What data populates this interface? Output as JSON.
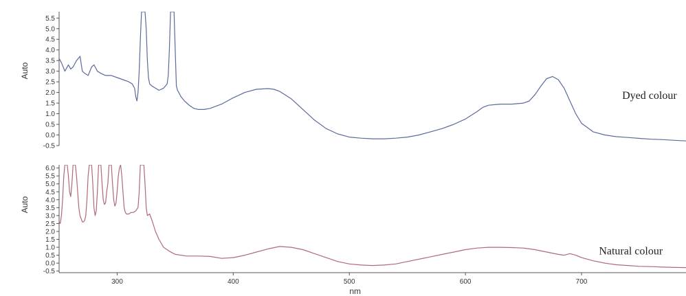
{
  "chart_data": [
    {
      "type": "line",
      "panel": "top",
      "title": "",
      "ylabel": "Auto",
      "xlabel": "",
      "xlim": [
        250,
        790
      ],
      "ylim": [
        -0.5,
        5.8
      ],
      "yticks": [
        5.5,
        5.0,
        4.5,
        4.0,
        3.5,
        3.0,
        2.5,
        2.0,
        1.5,
        1.0,
        0.5,
        0.0,
        -0.5
      ],
      "ytick_labels": [
        "5.5",
        "5.0",
        "4.5",
        "4.0",
        "3.5",
        "3.0",
        "2.5",
        "2.0",
        "1.5",
        "1.0",
        "0.5",
        "0.0",
        "-0.5"
      ],
      "grid": false,
      "series": [
        {
          "name": "Dyed colour",
          "color": "#5a6a9a",
          "x": [
            250,
            252,
            255,
            258,
            260,
            262,
            265,
            268,
            270,
            272,
            275,
            278,
            280,
            283,
            286,
            290,
            295,
            300,
            305,
            310,
            313,
            315,
            316,
            317,
            318,
            319,
            320,
            321,
            322,
            323,
            324,
            325,
            326,
            327,
            328,
            330,
            333,
            336,
            340,
            343,
            344,
            345,
            346,
            347,
            348,
            349,
            350,
            351,
            352,
            353,
            355,
            358,
            362,
            366,
            370,
            375,
            380,
            390,
            400,
            410,
            420,
            430,
            435,
            440,
            450,
            460,
            470,
            480,
            490,
            500,
            510,
            520,
            530,
            540,
            550,
            560,
            570,
            580,
            590,
            600,
            610,
            615,
            620,
            630,
            640,
            650,
            655,
            660,
            665,
            670,
            675,
            680,
            685,
            690,
            695,
            700,
            710,
            720,
            730,
            740,
            750,
            760,
            770,
            780,
            790
          ],
          "y": [
            3.6,
            3.4,
            3.0,
            3.3,
            3.1,
            3.2,
            3.5,
            3.7,
            3.0,
            2.9,
            2.8,
            3.2,
            3.3,
            3.0,
            2.9,
            2.8,
            2.8,
            2.7,
            2.6,
            2.5,
            2.4,
            2.2,
            1.8,
            1.6,
            2.0,
            3.0,
            4.5,
            5.8,
            5.8,
            5.8,
            5.8,
            5.0,
            3.5,
            2.7,
            2.4,
            2.3,
            2.2,
            2.1,
            2.2,
            2.4,
            2.8,
            4.0,
            5.8,
            5.8,
            5.8,
            5.8,
            4.0,
            2.3,
            2.1,
            2.0,
            1.8,
            1.6,
            1.4,
            1.25,
            1.2,
            1.2,
            1.25,
            1.45,
            1.75,
            2.0,
            2.15,
            2.18,
            2.15,
            2.05,
            1.7,
            1.2,
            0.7,
            0.3,
            0.05,
            -0.1,
            -0.15,
            -0.18,
            -0.18,
            -0.15,
            -0.1,
            0.0,
            0.15,
            0.3,
            0.5,
            0.75,
            1.1,
            1.3,
            1.4,
            1.45,
            1.45,
            1.5,
            1.6,
            1.9,
            2.3,
            2.65,
            2.75,
            2.6,
            2.2,
            1.6,
            1.0,
            0.55,
            0.15,
            0.0,
            -0.08,
            -0.12,
            -0.16,
            -0.2,
            -0.22,
            -0.25,
            -0.28
          ]
        }
      ],
      "annotations": [
        {
          "text": "Dyed colour",
          "x": 735,
          "y": 1.7
        }
      ]
    },
    {
      "type": "line",
      "panel": "bottom",
      "title": "",
      "ylabel": "Auto",
      "xlabel": "nm",
      "xlim": [
        250,
        790
      ],
      "ylim": [
        -0.6,
        6.2
      ],
      "yticks": [
        6.0,
        5.5,
        5.0,
        4.5,
        4.0,
        3.5,
        3.0,
        2.5,
        2.0,
        1.5,
        1.0,
        0.5,
        0.0,
        -0.5
      ],
      "ytick_labels": [
        "6.0",
        "5.5",
        "5.0",
        "4.5",
        "4.0",
        "3.5",
        "3.0",
        "2.5",
        "2.0",
        "1.5",
        "1.0",
        "0.5",
        "0.0",
        "-0.5"
      ],
      "xticks": [
        300,
        400,
        500,
        600,
        700
      ],
      "xtick_labels": [
        "300",
        "400",
        "500",
        "600",
        "700"
      ],
      "grid": false,
      "series": [
        {
          "name": "Natural colour",
          "color": "#b06a76",
          "x": [
            250,
            251,
            252,
            253,
            254,
            255,
            256,
            257,
            258,
            259,
            260,
            261,
            262,
            263,
            264,
            265,
            266,
            267,
            268,
            269,
            270,
            271,
            272,
            273,
            274,
            275,
            276,
            277,
            278,
            279,
            280,
            281,
            282,
            283,
            284,
            285,
            286,
            287,
            288,
            289,
            290,
            291,
            292,
            293,
            294,
            295,
            296,
            297,
            298,
            299,
            300,
            301,
            302,
            303,
            304,
            305,
            306,
            307,
            308,
            309,
            310,
            312,
            314,
            316,
            318,
            319,
            320,
            321,
            322,
            323,
            324,
            325,
            326,
            328,
            330,
            333,
            336,
            340,
            345,
            350,
            360,
            370,
            380,
            390,
            400,
            410,
            420,
            430,
            440,
            450,
            460,
            470,
            480,
            490,
            500,
            510,
            520,
            530,
            540,
            550,
            560,
            570,
            580,
            590,
            600,
            610,
            620,
            630,
            640,
            650,
            660,
            670,
            680,
            685,
            690,
            695,
            700,
            710,
            720,
            730,
            740,
            750,
            760,
            770,
            780,
            790
          ],
          "y": [
            2.6,
            2.5,
            3.0,
            4.0,
            5.5,
            6.2,
            6.2,
            6.2,
            5.5,
            4.5,
            4.2,
            5.0,
            6.2,
            6.2,
            6.2,
            5.5,
            4.5,
            3.5,
            3.0,
            2.8,
            2.6,
            2.6,
            2.7,
            3.0,
            4.0,
            5.5,
            6.2,
            6.2,
            6.2,
            5.0,
            3.5,
            3.0,
            3.3,
            4.5,
            6.2,
            6.2,
            6.2,
            5.0,
            4.0,
            3.7,
            3.8,
            4.5,
            5.0,
            6.2,
            6.2,
            6.2,
            5.0,
            4.0,
            3.6,
            3.8,
            4.5,
            5.5,
            6.0,
            6.2,
            5.5,
            4.5,
            3.5,
            3.2,
            3.1,
            3.1,
            3.1,
            3.2,
            3.2,
            3.3,
            3.5,
            4.5,
            6.2,
            6.2,
            6.2,
            6.2,
            5.0,
            3.5,
            3.0,
            3.1,
            2.7,
            2.0,
            1.5,
            1.0,
            0.75,
            0.55,
            0.45,
            0.45,
            0.42,
            0.3,
            0.35,
            0.5,
            0.7,
            0.9,
            1.05,
            1.0,
            0.85,
            0.6,
            0.35,
            0.1,
            -0.05,
            -0.12,
            -0.15,
            -0.12,
            -0.05,
            0.1,
            0.25,
            0.4,
            0.55,
            0.7,
            0.85,
            0.95,
            1.0,
            1.0,
            0.98,
            0.95,
            0.85,
            0.7,
            0.55,
            0.5,
            0.6,
            0.5,
            0.35,
            0.15,
            0.0,
            -0.1,
            -0.15,
            -0.2,
            -0.22,
            -0.25,
            -0.27,
            -0.28
          ]
        }
      ],
      "annotations": [
        {
          "text": "Natural colour",
          "x": 715,
          "y": 0.55
        }
      ]
    }
  ]
}
